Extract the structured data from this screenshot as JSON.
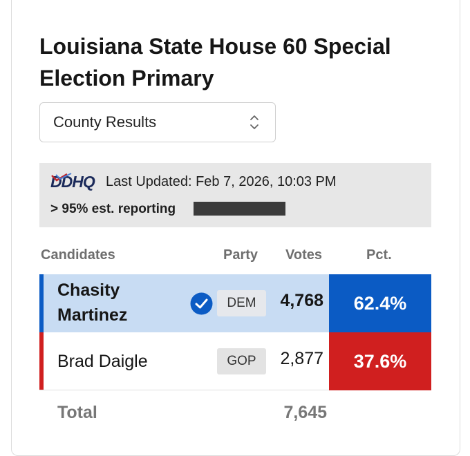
{
  "title": "Louisiana State House 60 Special Election Primary",
  "view_select": {
    "value": "County Results",
    "icon": "chevron-up-down-icon"
  },
  "info": {
    "logo_text": "DDHQ",
    "last_updated": "Last Updated: Feb 7, 2026, 10:03 PM",
    "reporting": "> 95% est. reporting",
    "reporting_bar_fraction": 1.0
  },
  "table": {
    "headers": {
      "candidates": "Candidates",
      "party": "Party",
      "votes": "Votes",
      "pct": "Pct."
    },
    "rows": [
      {
        "name": "Chasity Martinez",
        "winner": true,
        "party": "DEM",
        "votes": "4,768",
        "pct": "62.4%",
        "color": "#0b5bc4",
        "row_bg": "#c8dcf3"
      },
      {
        "name": "Brad Daigle",
        "winner": false,
        "party": "GOP",
        "votes": "2,877",
        "pct": "37.6%",
        "color": "#d01f1f",
        "row_bg": "#ffffff"
      }
    ],
    "total_label": "Total",
    "total_votes": "7,645"
  }
}
